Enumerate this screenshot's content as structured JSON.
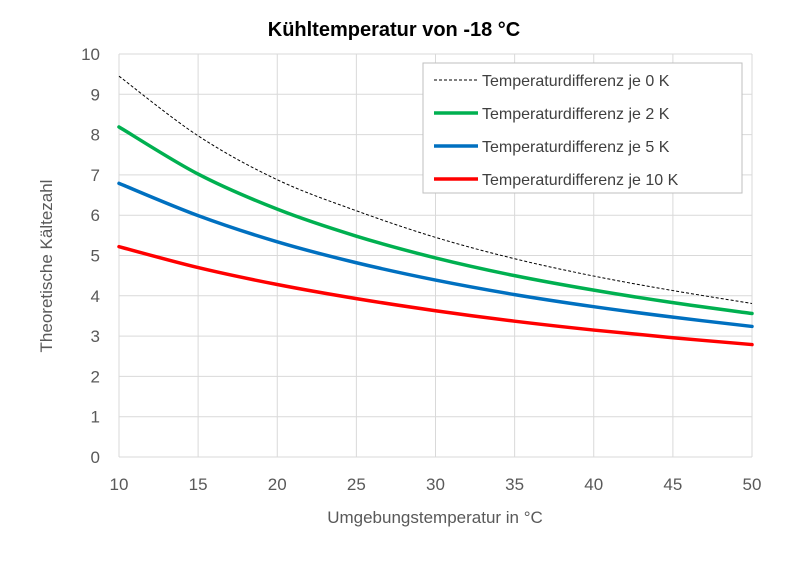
{
  "chart_data": {
    "type": "line",
    "title": "Kühltemperatur von -18 °C",
    "xlabel": "Umgebungstemperatur  in °C",
    "ylabel": "Theoretische  Kältezahl",
    "xlim": [
      10,
      50
    ],
    "ylim": [
      0,
      10
    ],
    "xticks": [
      "10",
      "15",
      "20",
      "25",
      "30",
      "35",
      "40",
      "45",
      "50"
    ],
    "yticks": [
      "0",
      "1",
      "2",
      "3",
      "4",
      "5",
      "6",
      "7",
      "8",
      "9",
      "10"
    ],
    "grid": true,
    "legend_position": "top-right",
    "x": [
      10,
      15,
      20,
      25,
      30,
      35,
      40,
      45,
      50
    ],
    "series": [
      {
        "name": "Temperaturdifferenz je 0 K",
        "color": "#000000",
        "dash": "dotted",
        "values": [
          9.45,
          7.97,
          6.88,
          6.11,
          5.45,
          4.92,
          4.49,
          4.13,
          3.81
        ]
      },
      {
        "name": "Temperaturdifferenz je 2 K",
        "color": "#00b050",
        "dash": "solid",
        "values": [
          8.19,
          7.02,
          6.15,
          5.48,
          4.94,
          4.5,
          4.14,
          3.83,
          3.56
        ]
      },
      {
        "name": "Temperaturdifferenz je 5 K",
        "color": "#0070c0",
        "dash": "solid",
        "values": [
          6.79,
          5.99,
          5.34,
          4.82,
          4.39,
          4.03,
          3.73,
          3.47,
          3.24
        ]
      },
      {
        "name": "Temperaturdifferenz je 10 K",
        "color": "#ff0000",
        "dash": "solid",
        "values": [
          5.22,
          4.7,
          4.28,
          3.93,
          3.63,
          3.37,
          3.15,
          2.96,
          2.79
        ]
      }
    ]
  }
}
